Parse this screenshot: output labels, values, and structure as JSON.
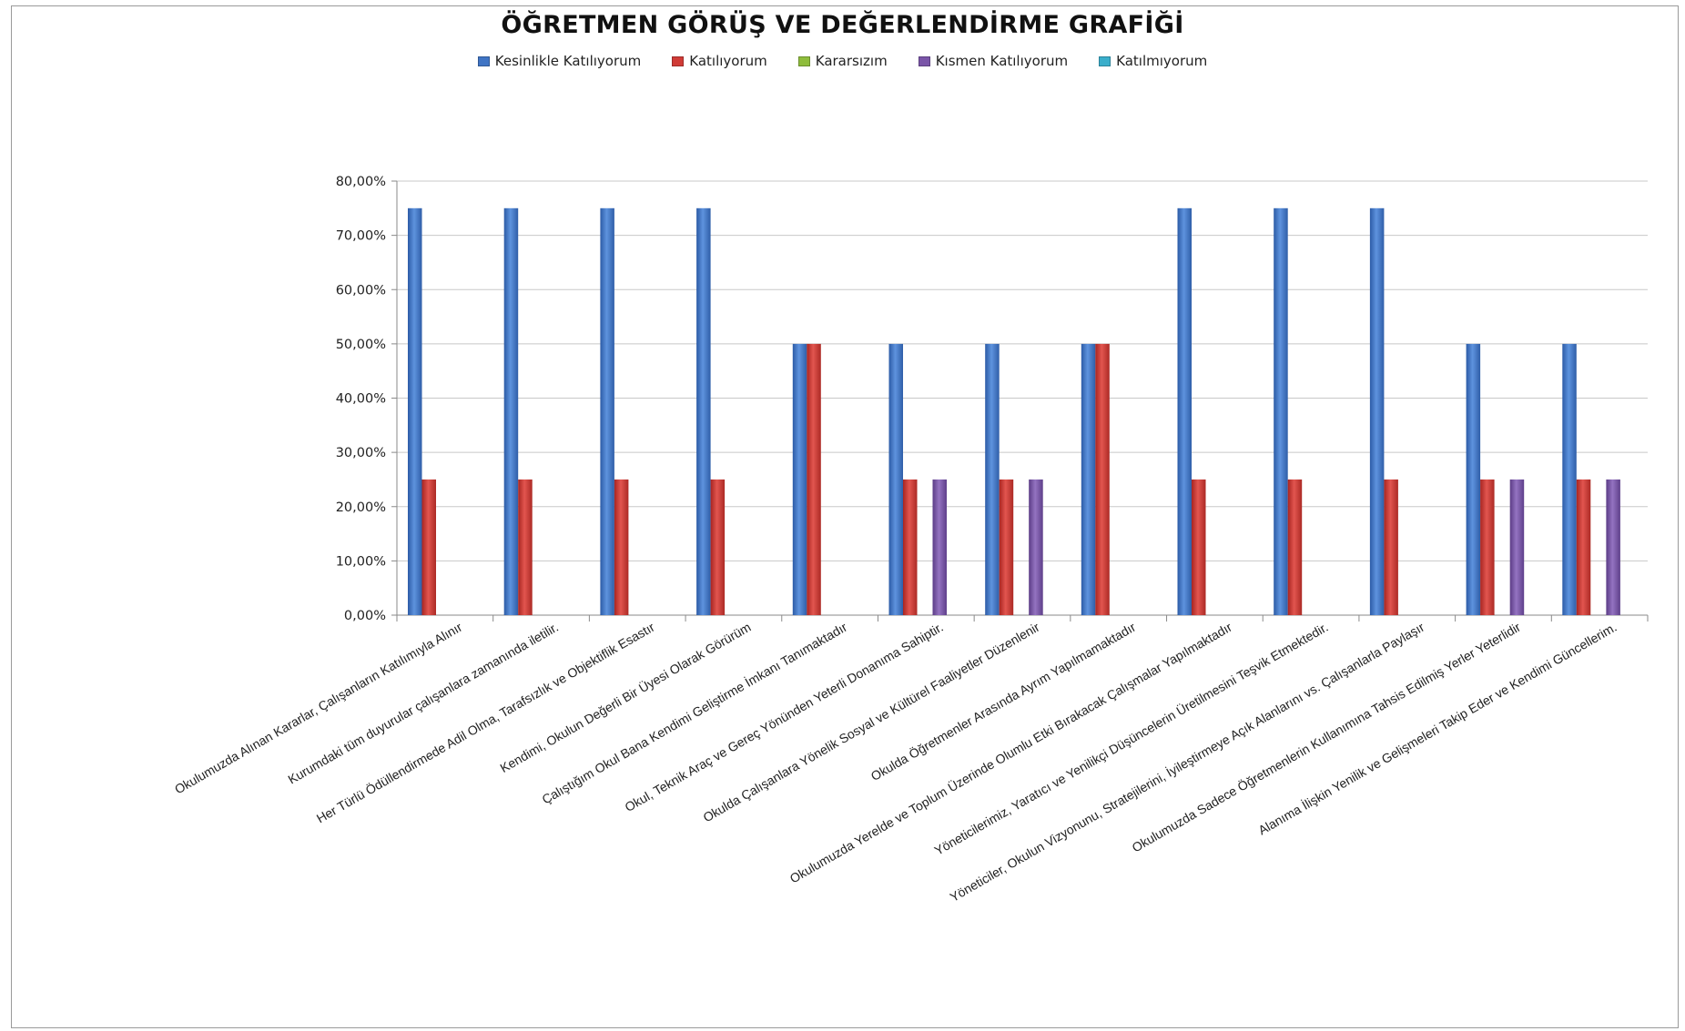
{
  "chart_data": {
    "type": "bar",
    "title": "ÖĞRETMEN GÖRÜŞ VE DEĞERLENDİRME GRAFİĞİ",
    "legend_position": "top",
    "grid": true,
    "y_ticks": [
      "0,00%",
      "10,00%",
      "20,00%",
      "30,00%",
      "40,00%",
      "50,00%",
      "60,00%",
      "70,00%",
      "80,00%"
    ],
    "ylim": [
      0,
      80
    ],
    "categories": [
      "Okulumuzda Alınan Kararlar, Çalışanların Katılımıyla Alınır",
      "Kurumdaki tüm duyurular çalışanlara zamanında iletilir.",
      "Her Türlü Ödüllendirmede Adil Olma, Tarafsızlık ve Objektiflik Esastır",
      "Kendimi, Okulun Değerli Bir Üyesi Olarak Görürüm",
      "Çalıştığım Okul Bana Kendimi Geliştirme İmkanı Tanımaktadır",
      "Okul, Teknik Araç ve Gereç Yönünden Yeterli Donanıma Sahiptir.",
      "Okulda Çalışanlara Yönelik Sosyal ve Kültürel Faaliyetler Düzenlenir",
      "Okulda Öğretmenler Arasında Ayrım Yapılmamaktadır",
      "Okulumuzda Yerelde ve Toplum Üzerinde Olumlu Etki Bırakacak Çalışmalar Yapılmaktadır",
      "Yöneticilerimiz, Yaratıcı ve Yenilikçi Düşüncelerin Üretilmesini Teşvik Etmektedir.",
      "Yöneticiler, Okulun Vizyonunu, Stratejilerini, İyileştirmeye Açık Alanlarını vs. Çalışanlarla Paylaşır",
      "Okulumuzda Sadece Öğretmenlerin Kullanımına Tahsis Edilmiş Yerler Yeterlidir",
      "Alanıma İlişkin Yenilik ve Gelişmeleri Takip Eder ve Kendimi Güncellerim."
    ],
    "series": [
      {
        "name": "Kesinlikle Katılıyorum",
        "color": "#3f74c4",
        "values": [
          75,
          75,
          75,
          75,
          50,
          50,
          50,
          50,
          75,
          75,
          75,
          50,
          50
        ]
      },
      {
        "name": "Katılıyorum",
        "color": "#d03b36",
        "values": [
          25,
          25,
          25,
          25,
          50,
          25,
          25,
          50,
          25,
          25,
          25,
          25,
          25
        ]
      },
      {
        "name": "Kararsızım",
        "color": "#8fbd3c",
        "values": [
          0,
          0,
          0,
          0,
          0,
          0,
          0,
          0,
          0,
          0,
          0,
          0,
          0
        ]
      },
      {
        "name": "Kısmen Katılıyorum",
        "color": "#7a55a8",
        "values": [
          0,
          0,
          0,
          0,
          0,
          25,
          25,
          0,
          0,
          0,
          0,
          25,
          25
        ]
      },
      {
        "name": "Katılmıyorum",
        "color": "#3aaecb",
        "values": [
          0,
          0,
          0,
          0,
          0,
          0,
          0,
          0,
          0,
          0,
          0,
          0,
          0
        ]
      }
    ]
  }
}
